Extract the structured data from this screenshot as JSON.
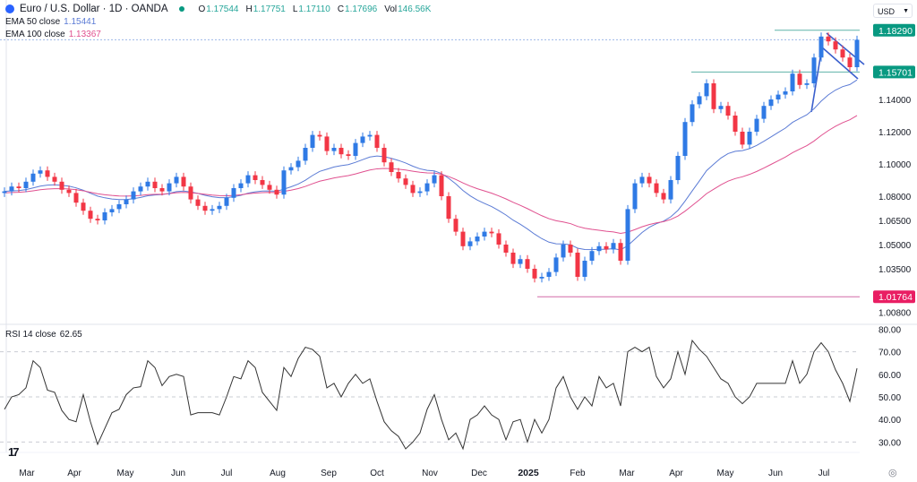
{
  "header": {
    "title": "Euro / U.S. Dollar · 1D · OANDA",
    "open_label": "O",
    "open": "1.17544",
    "high_label": "H",
    "high": "1.17751",
    "low_label": "L",
    "low": "1.17110",
    "close_label": "C",
    "close": "1.17696",
    "vol_label": "Vol",
    "vol": "146.56K",
    "market_status_color": "#089981"
  },
  "indicators": {
    "ema50": {
      "label": "EMA 50 close",
      "value": "1.15441",
      "color": "#5b7bd5"
    },
    "ema100": {
      "label": "EMA 100 close",
      "value": "1.13367",
      "color": "#e0508f"
    },
    "rsi": {
      "label": "RSI 14 close",
      "value": "62.65"
    }
  },
  "currency_select": {
    "value": "USD",
    "icon": "chevron-down-icon"
  },
  "settings_icon": "gear-icon",
  "logo": "TV",
  "chart_data": {
    "type": "candlestick",
    "price_axis_labels": [
      "1.14000",
      "1.12000",
      "1.10000",
      "1.08000",
      "1.06500",
      "1.05000",
      "1.03500",
      "1.00800"
    ],
    "price_axis_values": [
      1.14,
      1.12,
      1.1,
      1.08,
      1.065,
      1.05,
      1.035,
      1.008
    ],
    "time_axis_labels": [
      "Mar",
      "Apr",
      "May",
      "Jun",
      "Jul",
      "Aug",
      "Sep",
      "Oct",
      "Nov",
      "Dec",
      "2025",
      "Feb",
      "Mar",
      "Apr",
      "May",
      "Jun",
      "Jul"
    ],
    "price_tags": [
      {
        "label": "1.18290",
        "value": 1.1829,
        "color": "#089981"
      },
      {
        "label": "1.15701",
        "value": 1.15701,
        "color": "#089981"
      },
      {
        "label": "1.01764",
        "value": 1.01764,
        "color": "#e91e63"
      }
    ],
    "up_color": "#2f7ae5",
    "down_color": "#f23645",
    "closes": [
      1.083,
      1.086,
      1.085,
      1.089,
      1.094,
      1.096,
      1.092,
      1.089,
      1.084,
      1.082,
      1.076,
      1.071,
      1.066,
      1.065,
      1.07,
      1.072,
      1.075,
      1.078,
      1.083,
      1.086,
      1.089,
      1.085,
      1.083,
      1.088,
      1.092,
      1.086,
      1.078,
      1.074,
      1.071,
      1.072,
      1.074,
      1.079,
      1.085,
      1.088,
      1.093,
      1.09,
      1.087,
      1.084,
      1.081,
      1.096,
      1.098,
      1.102,
      1.11,
      1.118,
      1.117,
      1.108,
      1.11,
      1.106,
      1.105,
      1.113,
      1.117,
      1.118,
      1.11,
      1.101,
      1.095,
      1.091,
      1.087,
      1.082,
      1.083,
      1.088,
      1.093,
      1.08,
      1.066,
      1.058,
      1.049,
      1.052,
      1.055,
      1.058,
      1.057,
      1.05,
      1.045,
      1.038,
      1.041,
      1.035,
      1.029,
      1.03,
      1.033,
      1.042,
      1.05,
      1.045,
      1.03,
      1.04,
      1.046,
      1.049,
      1.047,
      1.051,
      1.04,
      1.072,
      1.088,
      1.092,
      1.088,
      1.082,
      1.078,
      1.09,
      1.105,
      1.126,
      1.137,
      1.142,
      1.15,
      1.134,
      1.136,
      1.13,
      1.12,
      1.112,
      1.12,
      1.128,
      1.136,
      1.14,
      1.143,
      1.145,
      1.156,
      1.149,
      1.15,
      1.166,
      1.179,
      1.176,
      1.171,
      1.166,
      1.16,
      1.177
    ],
    "rsi": {
      "levels": [
        70,
        50,
        30
      ],
      "axis_labels": [
        "80.00",
        "70.00",
        "60.00",
        "50.00",
        "40.00",
        "30.00"
      ],
      "axis_values": [
        80,
        70,
        60,
        50,
        40,
        30
      ],
      "values": [
        44.5,
        50,
        51,
        54,
        66,
        63,
        53,
        52,
        44,
        40,
        39,
        51,
        39,
        29,
        36,
        43,
        44.5,
        51,
        54,
        54.5,
        66,
        63,
        55,
        59,
        60,
        59,
        42,
        43,
        43,
        43,
        42,
        50,
        59,
        58,
        66,
        63,
        52,
        48,
        44,
        63,
        59,
        67,
        72,
        71,
        68,
        54,
        56,
        50,
        56,
        60,
        56,
        58,
        48,
        39,
        35,
        32.5,
        27,
        30,
        34,
        44.5,
        51,
        40,
        31,
        34,
        27,
        40,
        42,
        46,
        42,
        40,
        31,
        39,
        40,
        30,
        40,
        34,
        40,
        54,
        59,
        50,
        44.5,
        50,
        46,
        59,
        54,
        56,
        46,
        70,
        72,
        70,
        72,
        59,
        54,
        58,
        70,
        60,
        75,
        71,
        68,
        63,
        58,
        56,
        50,
        47,
        50,
        56,
        56,
        56,
        56,
        56,
        66,
        56,
        60,
        70,
        74,
        70,
        62,
        56,
        48,
        62.65
      ]
    }
  }
}
